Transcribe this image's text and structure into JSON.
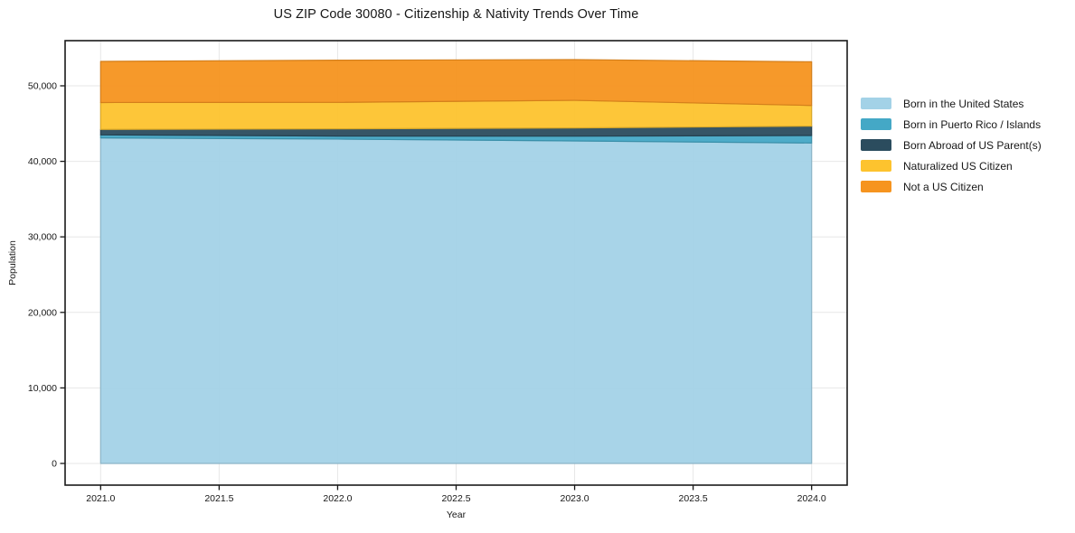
{
  "chart_data": {
    "type": "area",
    "stacked": true,
    "title": "US ZIP Code 30080 - Citizenship & Nativity Trends Over Time",
    "xlabel": "Year",
    "ylabel": "Population",
    "x": [
      2021,
      2022,
      2023,
      2024
    ],
    "series": [
      {
        "name": "Born in the United States",
        "color": "#a3d2e7",
        "values": [
          43100,
          42950,
          42700,
          42430
        ]
      },
      {
        "name": "Born in Puerto Rico / Islands",
        "color": "#44a8c6",
        "values": [
          400,
          400,
          640,
          990
        ]
      },
      {
        "name": "Born Abroad of US Parent(s)",
        "color": "#2b4c5e",
        "values": [
          720,
          950,
          1080,
          1240
        ]
      },
      {
        "name": "Naturalized US Citizen",
        "color": "#fdc32e",
        "values": [
          3570,
          3510,
          3660,
          2740
        ]
      },
      {
        "name": "Not a US Citizen",
        "color": "#f6941f",
        "values": [
          5440,
          5580,
          5390,
          5780
        ]
      }
    ],
    "totals": [
      53230,
      53390,
      53470,
      53180
    ],
    "xlim": [
      2020.85,
      2024.15
    ],
    "ylim": [
      -2870,
      55980
    ],
    "xticks": [
      2021.0,
      2021.5,
      2022.0,
      2022.5,
      2023.0,
      2023.5,
      2024.0
    ],
    "xtick_labels": [
      "2021.0",
      "2021.5",
      "2022.0",
      "2022.5",
      "2023.0",
      "2023.5",
      "2024.0"
    ],
    "yticks": [
      0,
      10000,
      20000,
      30000,
      40000,
      50000
    ],
    "ytick_labels": [
      "0",
      "10,000",
      "20,000",
      "30,000",
      "40,000",
      "50,000"
    ],
    "grid": true,
    "legend_position": "right-outside"
  }
}
